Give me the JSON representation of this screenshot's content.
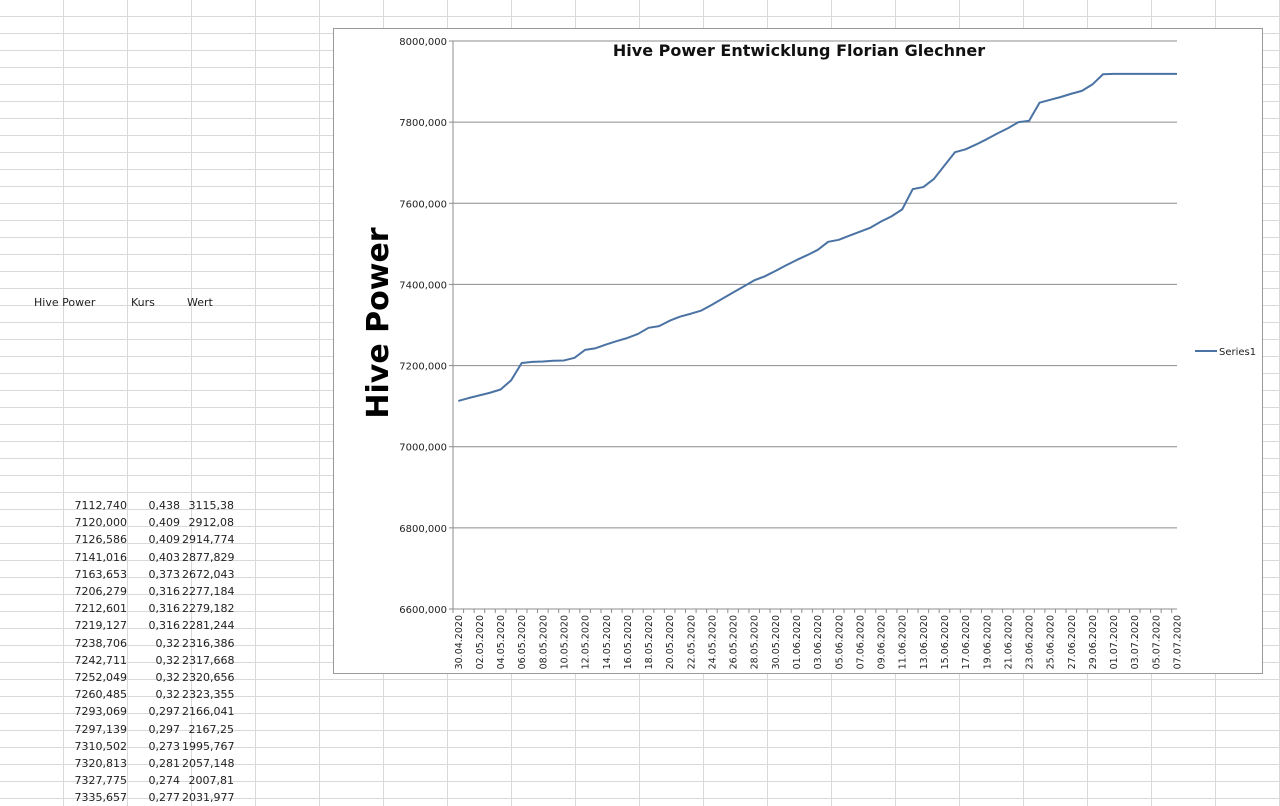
{
  "sheet": {
    "headers": [
      "Hive Power",
      "Kurs",
      "Wert"
    ],
    "rows": [
      [
        "7112,740",
        "0,438",
        "3115,38"
      ],
      [
        "7120,000",
        "0,409",
        "2912,08"
      ],
      [
        "7126,586",
        "0,409",
        "2914,774"
      ],
      [
        "7141,016",
        "0,403",
        "2877,829"
      ],
      [
        "7163,653",
        "0,373",
        "2672,043"
      ],
      [
        "7206,279",
        "0,316",
        "2277,184"
      ],
      [
        "7212,601",
        "0,316",
        "2279,182"
      ],
      [
        "7219,127",
        "0,316",
        "2281,244"
      ],
      [
        "7238,706",
        "0,32",
        "2316,386"
      ],
      [
        "7242,711",
        "0,32",
        "2317,668"
      ],
      [
        "7252,049",
        "0,32",
        "2320,656"
      ],
      [
        "7260,485",
        "0,32",
        "2323,355"
      ],
      [
        "7293,069",
        "0,297",
        "2166,041"
      ],
      [
        "7297,139",
        "0,297",
        "2167,25"
      ],
      [
        "7310,502",
        "0,273",
        "1995,767"
      ],
      [
        "7320,813",
        "0,281",
        "2057,148"
      ],
      [
        "7327,775",
        "0,274",
        "2007,81"
      ],
      [
        "7335,657",
        "0,277",
        "2031,977"
      ]
    ]
  },
  "chart_data": {
    "type": "line",
    "title": "Hive Power Entwicklung Florian Glechner",
    "ylabel": "Hive Power",
    "xlabel": "",
    "ylim": [
      6600,
      8000
    ],
    "y_ticks": [
      "6600,000",
      "6800,000",
      "7000,000",
      "7200,000",
      "7400,000",
      "7600,000",
      "7800,000",
      "8000,000"
    ],
    "y_tick_values": [
      6600,
      6800,
      7000,
      7200,
      7400,
      7600,
      7800,
      8000
    ],
    "grid": "horizontal",
    "legend_position": "right",
    "series_color": "#4a73a4",
    "x_tick_labels": [
      "30.04.2020",
      "02.05.2020",
      "04.05.2020",
      "06.05.2020",
      "08.05.2020",
      "10.05.2020",
      "12.05.2020",
      "14.05.2020",
      "16.05.2020",
      "18.05.2020",
      "20.05.2020",
      "22.05.2020",
      "24.05.2020",
      "26.05.2020",
      "28.05.2020",
      "30.05.2020",
      "01.06.2020",
      "03.06.2020",
      "05.06.2020",
      "07.06.2020",
      "09.06.2020",
      "11.06.2020",
      "13.06.2020",
      "15.06.2020",
      "17.06.2020",
      "19.06.2020",
      "21.06.2020",
      "23.06.2020",
      "25.06.2020",
      "27.06.2020",
      "29.06.2020",
      "01.07.2020",
      "03.07.2020",
      "05.07.2020",
      "07.07.2020"
    ],
    "series": [
      {
        "name": "Series1",
        "x": [
          "30.04.2020",
          "01.05.2020",
          "02.05.2020",
          "03.05.2020",
          "04.05.2020",
          "05.05.2020",
          "06.05.2020",
          "07.05.2020",
          "08.05.2020",
          "09.05.2020",
          "10.05.2020",
          "11.05.2020",
          "12.05.2020",
          "13.05.2020",
          "14.05.2020",
          "15.05.2020",
          "16.05.2020",
          "17.05.2020",
          "18.05.2020",
          "19.05.2020",
          "20.05.2020",
          "21.05.2020",
          "22.05.2020",
          "23.05.2020",
          "24.05.2020",
          "25.05.2020",
          "26.05.2020",
          "27.05.2020",
          "28.05.2020",
          "29.05.2020",
          "30.05.2020",
          "31.05.2020",
          "01.06.2020",
          "02.06.2020",
          "03.06.2020",
          "04.06.2020",
          "05.06.2020",
          "06.06.2020",
          "07.06.2020",
          "08.06.2020",
          "09.06.2020",
          "10.06.2020",
          "11.06.2020",
          "12.06.2020",
          "13.06.2020",
          "14.06.2020",
          "15.06.2020",
          "16.06.2020",
          "17.06.2020",
          "18.06.2020",
          "19.06.2020",
          "20.06.2020",
          "21.06.2020",
          "22.06.2020",
          "23.06.2020",
          "24.06.2020",
          "25.06.2020",
          "26.06.2020",
          "27.06.2020",
          "28.06.2020",
          "29.06.2020",
          "30.06.2020",
          "01.07.2020",
          "02.07.2020",
          "03.07.2020",
          "04.07.2020",
          "05.07.2020",
          "06.07.2020",
          "07.07.2020"
        ],
        "values": [
          7112.74,
          7120.0,
          7126.586,
          7133.0,
          7141.016,
          7163.653,
          7206.279,
          7209.0,
          7210.0,
          7212.0,
          7212.601,
          7219.127,
          7238.706,
          7242.711,
          7252.049,
          7260.485,
          7268.0,
          7278.0,
          7293.069,
          7297.139,
          7310.502,
          7320.813,
          7327.775,
          7335.657,
          7350.0,
          7365.0,
          7380.0,
          7395.0,
          7410.0,
          7420.0,
          7433.0,
          7447.0,
          7460.0,
          7472.0,
          7485.0,
          7505.0,
          7510.0,
          7520.0,
          7530.0,
          7540.0,
          7555.0,
          7568.0,
          7585.0,
          7635.0,
          7640.0,
          7660.0,
          7693.0,
          7726.0,
          7733.0,
          7745.0,
          7758.0,
          7772.0,
          7785.0,
          7800.0,
          7803.0,
          7848.0,
          7855.0,
          7862.0,
          7870.0,
          7877.0,
          7893.0,
          7918.0,
          7919.0,
          7919.0,
          7919.0,
          7919.0,
          7919.0,
          7919.0,
          7919.0
        ]
      }
    ]
  }
}
